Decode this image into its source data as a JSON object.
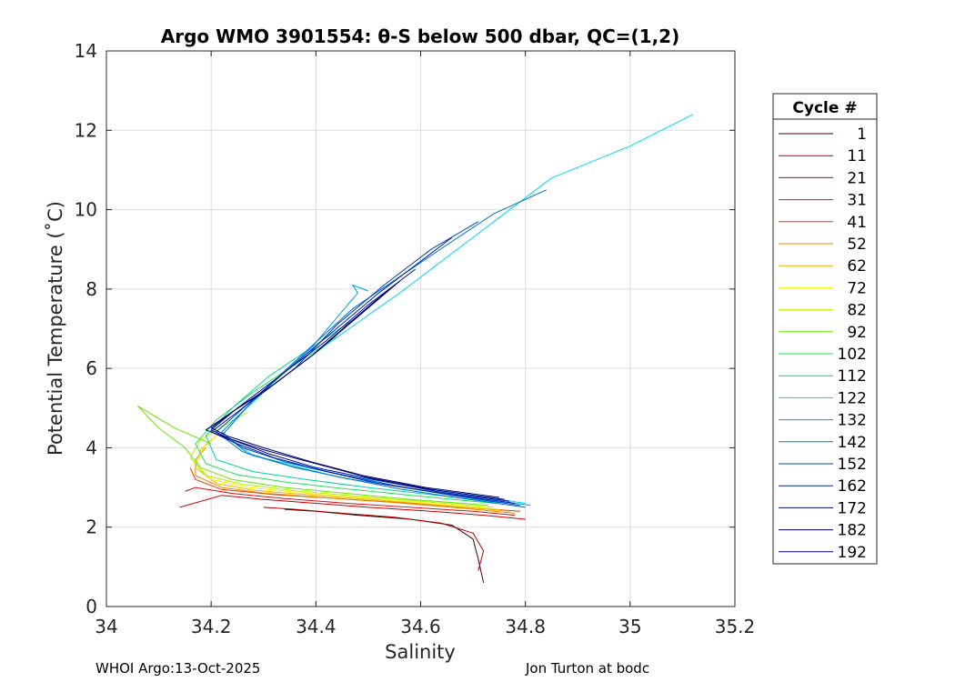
{
  "chart_data": {
    "type": "line",
    "title": "Argo WMO 3901554: θ-S below 500 dbar,  QC=(1,2)",
    "xlabel": "Salinity",
    "ylabel": "Potential Temperature (˚C)",
    "xlim": [
      34,
      35.2
    ],
    "ylim": [
      0,
      14
    ],
    "xticks": [
      34,
      34.2,
      34.4,
      34.6,
      34.8,
      35,
      35.2
    ],
    "xtick_labels": [
      "34",
      "34.2",
      "34.4",
      "34.6",
      "34.8",
      "35",
      "35.2"
    ],
    "yticks": [
      0,
      2,
      4,
      6,
      8,
      10,
      12,
      14
    ],
    "ytick_labels": [
      "0",
      "2",
      "4",
      "6",
      "8",
      "10",
      "12",
      "14"
    ],
    "grid": true,
    "legend": {
      "title": "Cycle #",
      "placement": "outside-right"
    },
    "series": [
      {
        "name": "1",
        "color": "#3a0000",
        "x": [
          34.72,
          34.71,
          34.7,
          34.66,
          34.58,
          34.48,
          34.4,
          34.34
        ],
        "y": [
          0.6,
          1.2,
          1.7,
          2.05,
          2.2,
          2.3,
          2.4,
          2.45
        ]
      },
      {
        "name": "11",
        "color": "#b30000",
        "x": [
          34.71,
          34.72,
          34.7,
          34.64,
          34.55,
          34.45,
          34.36,
          34.3
        ],
        "y": [
          0.9,
          1.4,
          1.85,
          2.1,
          2.25,
          2.35,
          2.45,
          2.5
        ]
      },
      {
        "name": "21",
        "color": "#cc0000",
        "x": [
          34.8,
          34.72,
          34.62,
          34.5,
          34.4,
          34.3,
          34.22,
          34.14
        ],
        "y": [
          2.2,
          2.3,
          2.4,
          2.5,
          2.6,
          2.7,
          2.8,
          2.5
        ]
      },
      {
        "name": "31",
        "color": "#dd1111",
        "x": [
          34.78,
          34.7,
          34.58,
          34.46,
          34.34,
          34.24,
          34.17,
          34.15
        ],
        "y": [
          2.3,
          2.4,
          2.5,
          2.6,
          2.72,
          2.85,
          3.0,
          2.9
        ]
      },
      {
        "name": "41",
        "color": "#ee3300",
        "x": [
          34.79,
          34.68,
          34.56,
          34.44,
          34.32,
          34.22,
          34.17,
          34.16
        ],
        "y": [
          2.4,
          2.5,
          2.62,
          2.72,
          2.82,
          2.95,
          3.2,
          3.5
        ]
      },
      {
        "name": "52",
        "color": "#e68a00",
        "x": [
          34.78,
          34.66,
          34.54,
          34.42,
          34.3,
          34.22,
          34.17,
          34.17,
          34.19
        ],
        "y": [
          2.35,
          2.5,
          2.63,
          2.74,
          2.86,
          3.0,
          3.3,
          3.7,
          4.0
        ]
      },
      {
        "name": "62",
        "color": "#f0b400",
        "x": [
          34.77,
          34.64,
          34.52,
          34.4,
          34.28,
          34.21,
          34.17,
          34.18,
          34.21
        ],
        "y": [
          2.4,
          2.55,
          2.68,
          2.8,
          2.93,
          3.1,
          3.5,
          3.95,
          4.3
        ]
      },
      {
        "name": "72",
        "color": "#f2f200",
        "x": [
          34.75,
          34.62,
          34.5,
          34.38,
          34.27,
          34.2,
          34.17,
          34.19,
          34.23
        ],
        "y": [
          2.45,
          2.6,
          2.73,
          2.86,
          3.0,
          3.2,
          3.6,
          4.1,
          4.5
        ]
      },
      {
        "name": "82",
        "color": "#b8f000",
        "x": [
          34.74,
          34.6,
          34.48,
          34.36,
          34.26,
          34.19,
          34.16,
          34.18,
          34.23,
          34.27
        ],
        "y": [
          2.5,
          2.65,
          2.78,
          2.92,
          3.08,
          3.3,
          3.75,
          4.2,
          4.6,
          4.9
        ]
      },
      {
        "name": "92",
        "color": "#66e600",
        "x": [
          34.73,
          34.58,
          34.46,
          34.34,
          34.24,
          34.18,
          34.15,
          34.1,
          34.06,
          34.13,
          34.2
        ],
        "y": [
          2.55,
          2.7,
          2.85,
          3.0,
          3.2,
          3.5,
          4.0,
          4.5,
          5.05,
          4.5,
          4.1
        ]
      },
      {
        "name": "102",
        "color": "#22e055",
        "x": [
          34.74,
          34.6,
          34.47,
          34.35,
          34.25,
          34.19,
          34.17,
          34.21,
          34.28,
          34.36,
          34.44
        ],
        "y": [
          2.6,
          2.78,
          2.95,
          3.12,
          3.32,
          3.6,
          4.1,
          4.7,
          5.4,
          6.1,
          6.8
        ]
      },
      {
        "name": "112",
        "color": "#00d4a0",
        "x": [
          34.75,
          34.62,
          34.5,
          34.38,
          34.28,
          34.21,
          34.19,
          34.24,
          34.31,
          34.4,
          34.48
        ],
        "y": [
          2.62,
          2.82,
          3.0,
          3.2,
          3.4,
          3.7,
          4.3,
          5.0,
          5.8,
          6.6,
          7.3
        ]
      },
      {
        "name": "122",
        "color": "#00d8e8",
        "x": [
          34.8,
          34.7,
          34.6,
          34.48,
          34.38,
          34.28,
          34.22,
          34.3,
          34.42,
          34.56,
          34.7,
          34.85,
          35.0,
          35.12
        ],
        "y": [
          2.6,
          2.8,
          3.0,
          3.25,
          3.5,
          3.8,
          4.4,
          5.4,
          6.6,
          7.9,
          9.3,
          10.8,
          11.6,
          12.4
        ]
      },
      {
        "name": "132",
        "color": "#00a0e0",
        "x": [
          34.81,
          34.7,
          34.58,
          34.46,
          34.36,
          34.27,
          34.22,
          34.29,
          34.39,
          34.48,
          34.47,
          34.5
        ],
        "y": [
          2.55,
          2.75,
          2.98,
          3.22,
          3.5,
          3.85,
          4.4,
          5.3,
          6.5,
          7.9,
          8.1,
          7.95
        ]
      },
      {
        "name": "142",
        "color": "#0070d8",
        "x": [
          34.8,
          34.68,
          34.56,
          34.45,
          34.35,
          34.26,
          34.22,
          34.28,
          34.37,
          34.47,
          34.57,
          34.66,
          34.74,
          34.84
        ],
        "y": [
          2.5,
          2.72,
          2.96,
          3.25,
          3.55,
          3.9,
          4.3,
          5.2,
          6.3,
          7.5,
          8.4,
          9.2,
          9.9,
          10.5
        ]
      },
      {
        "name": "152",
        "color": "#0040c8",
        "x": [
          34.79,
          34.66,
          34.55,
          34.44,
          34.34,
          34.26,
          34.21,
          34.27,
          34.36,
          34.44,
          34.53,
          34.62,
          34.71
        ],
        "y": [
          2.55,
          2.8,
          3.05,
          3.35,
          3.65,
          4.0,
          4.4,
          5.1,
          6.0,
          7.1,
          8.1,
          9.0,
          9.7
        ]
      },
      {
        "name": "162",
        "color": "#0020b0",
        "x": [
          34.78,
          34.64,
          34.52,
          34.42,
          34.32,
          34.25,
          34.2,
          34.26,
          34.34,
          34.43,
          34.52,
          34.6,
          34.66
        ],
        "y": [
          2.6,
          2.85,
          3.1,
          3.4,
          3.75,
          4.1,
          4.4,
          5.0,
          5.9,
          6.9,
          7.9,
          8.7,
          9.3
        ]
      },
      {
        "name": "172",
        "color": "#0010a0",
        "x": [
          34.77,
          34.63,
          34.51,
          34.4,
          34.31,
          34.24,
          34.2,
          34.25,
          34.33,
          34.42,
          34.5,
          34.59
        ],
        "y": [
          2.65,
          2.9,
          3.2,
          3.5,
          3.85,
          4.2,
          4.45,
          5.0,
          5.8,
          6.7,
          7.6,
          8.5
        ]
      },
      {
        "name": "182",
        "color": "#000080",
        "x": [
          34.76,
          34.62,
          34.5,
          34.4,
          34.3,
          34.23,
          34.19,
          34.24,
          34.32,
          34.4,
          34.48,
          34.56
        ],
        "y": [
          2.7,
          2.95,
          3.25,
          3.6,
          3.95,
          4.25,
          4.45,
          4.9,
          5.6,
          6.4,
          7.3,
          8.2
        ]
      },
      {
        "name": "192",
        "color": "#000066",
        "x": [
          34.75,
          34.61,
          34.49,
          34.39,
          34.3,
          34.23,
          34.2,
          34.24,
          34.31,
          34.39,
          34.46,
          34.54
        ],
        "y": [
          2.75,
          3.0,
          3.3,
          3.65,
          4.0,
          4.3,
          4.5,
          4.9,
          5.5,
          6.3,
          7.1,
          8.0
        ]
      }
    ]
  },
  "footer": {
    "left": "WHOI Argo:13-Oct-2025",
    "right": "Jon Turton at bodc"
  }
}
